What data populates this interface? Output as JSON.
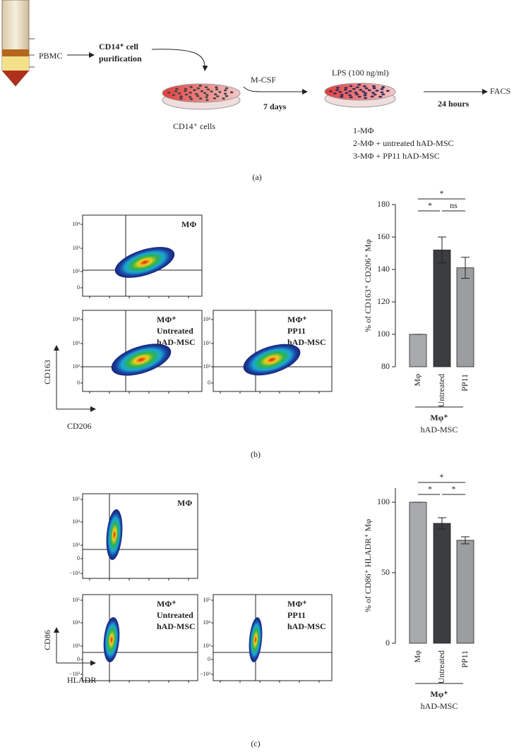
{
  "panel_a": {
    "pbmc": "PBMC",
    "purification": [
      "CD14⁺ cell",
      "purification"
    ],
    "mcsf": "M-CSF",
    "days": "7 days",
    "cells": "CD14⁺ cells",
    "lps": "LPS (100 ng/ml)",
    "hours": "24 hours",
    "facs": "FACS",
    "conditions": [
      "1-MΦ",
      "2-MΦ + untreated hAD-MSC",
      "3-MΦ + PP11 hAD-MSC"
    ],
    "label": "(a)"
  },
  "panel_b": {
    "plots": [
      [
        "MΦ"
      ],
      [
        "MΦ⁺",
        "Untreated",
        "hAD-MSC"
      ],
      [
        "MΦ⁺",
        "PP11",
        "hAD-MSC"
      ]
    ],
    "yticks": [
      "10⁴",
      "10³",
      "10²",
      "0"
    ],
    "ylabel": "CD163",
    "xlabel": "CD206",
    "label": "(b)"
  },
  "panel_c": {
    "plots": [
      [
        "MΦ"
      ],
      [
        "MΦ⁺",
        "Untreated",
        "hAD-MSC"
      ],
      [
        "MΦ⁺",
        "PP11",
        "hAD-MSC"
      ]
    ],
    "yticks": [
      "10⁵",
      "10⁴",
      "10³",
      "0",
      "−10³"
    ],
    "ylabel": "CD86",
    "xlabel": "HLADR",
    "label": "(c)"
  },
  "chart_data": [
    {
      "type": "bar",
      "ylabel": "% of CD163⁺ CD206⁺ Mφ",
      "categories": [
        "Mφ",
        "Untreated",
        "PP11"
      ],
      "values": [
        100,
        152,
        141
      ],
      "errors": [
        0,
        8,
        6.5
      ],
      "colors": [
        "#a9aaac",
        "#3c3d41",
        "#9c9d9f"
      ],
      "ylim": [
        80,
        180
      ],
      "yticks": [
        80,
        100,
        120,
        140,
        160,
        180
      ],
      "significance": [
        "*",
        "*",
        "ns"
      ],
      "group": [
        "Mφ⁺",
        "hAD-MSC"
      ]
    },
    {
      "type": "bar",
      "ylabel": "% of CD86⁺ HLADR⁺ Mφ",
      "categories": [
        "Mφ",
        "Untreated",
        "PP11"
      ],
      "values": [
        100,
        85,
        73
      ],
      "errors": [
        0,
        4,
        2.5
      ],
      "colors": [
        "#a9aaac",
        "#3c3d41",
        "#9c9d9f"
      ],
      "ylim": [
        0,
        110
      ],
      "yticks": [
        0,
        50,
        100
      ],
      "significance": [
        "*",
        "*",
        "*"
      ],
      "group": [
        "Mφ⁺",
        "hAD-MSC"
      ]
    }
  ]
}
